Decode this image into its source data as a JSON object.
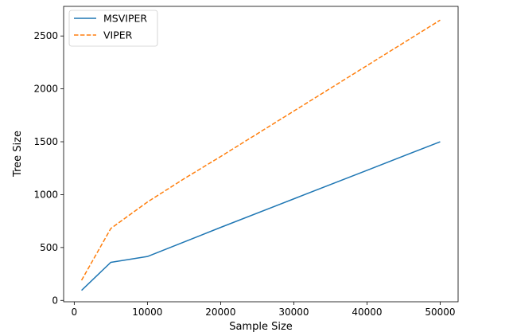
{
  "chart_data": {
    "type": "line",
    "title": "",
    "xlabel": "Sample Size",
    "ylabel": "Tree Size",
    "xlim": [
      -1450,
      52450
    ],
    "ylim": [
      -13,
      2780
    ],
    "xticks": [
      0,
      10000,
      20000,
      30000,
      40000,
      50000
    ],
    "yticks": [
      0,
      500,
      1000,
      1500,
      2000,
      2500
    ],
    "grid": false,
    "legend_position": "top-left",
    "series": [
      {
        "name": "MSVIPER",
        "color": "#1f77b4",
        "style": "solid",
        "x": [
          1000,
          5000,
          10000,
          20000,
          30000,
          40000,
          50000
        ],
        "y": [
          95,
          360,
          415,
          690,
          960,
          1230,
          1500
        ]
      },
      {
        "name": "VIPER",
        "color": "#ff7f0e",
        "style": "dashed",
        "x": [
          1000,
          5000,
          10000,
          15000,
          20000,
          30000,
          40000,
          50000
        ],
        "y": [
          190,
          680,
          930,
          1150,
          1360,
          1790,
          2220,
          2650
        ]
      }
    ]
  }
}
